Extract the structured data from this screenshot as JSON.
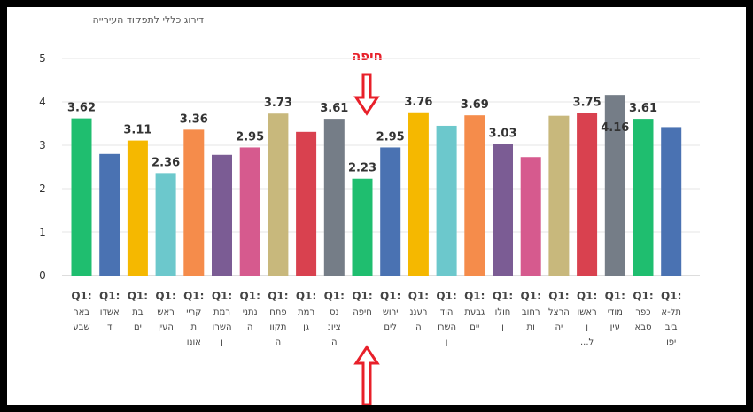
{
  "chart_data": {
    "type": "bar",
    "title": "דירוג כללי לתפקוד העירייה",
    "ylim": [
      0,
      5
    ],
    "yticks": [
      "0",
      "1",
      "2",
      "3",
      "4",
      "5"
    ],
    "grid": true,
    "categories": [
      [
        "Q1:",
        "באר",
        "שבע"
      ],
      [
        "Q1:",
        "אשדו",
        "ד"
      ],
      [
        "Q1:",
        "בת",
        "ים"
      ],
      [
        "Q1:",
        "ראש",
        "העין"
      ],
      [
        "Q1:",
        "קריי",
        "ת",
        "אונו"
      ],
      [
        "Q1:",
        "רמת",
        "השרו",
        "ן"
      ],
      [
        "Q1:",
        "נתני",
        "ה"
      ],
      [
        "Q1:",
        "פתח",
        "תקוו",
        "ה"
      ],
      [
        "Q1:",
        "רמת",
        "גן"
      ],
      [
        "Q1:",
        "נס",
        "ציונ",
        "ה"
      ],
      [
        "Q1:",
        "חיפה"
      ],
      [
        "Q1:",
        "ירוש",
        "לים"
      ],
      [
        "Q1:",
        "רעננ",
        "ה"
      ],
      [
        "Q1:",
        "הוד",
        "השרו",
        "ן"
      ],
      [
        "Q1:",
        "גבעת",
        "יים"
      ],
      [
        "Q1:",
        "חולו",
        "ן"
      ],
      [
        "Q1:",
        "רחוב",
        "ות"
      ],
      [
        "Q1:",
        "הרצל",
        "יה"
      ],
      [
        "Q1:",
        "ראשו",
        "ן",
        "ל..."
      ],
      [
        "Q1:",
        "מודי",
        "עין"
      ],
      [
        "Q1:",
        "כפר",
        "סבא"
      ],
      [
        "Q1:",
        "תל-א",
        "ביב",
        "יפו"
      ]
    ],
    "values": [
      3.62,
      2.8,
      3.11,
      2.36,
      3.36,
      2.78,
      2.95,
      3.73,
      3.31,
      3.61,
      2.23,
      2.95,
      3.76,
      3.45,
      3.69,
      3.03,
      2.73,
      3.68,
      3.75,
      4.16,
      3.61,
      3.42
    ],
    "data_labels": [
      "3.62",
      "",
      "3.11",
      "2.36",
      "3.36",
      "",
      "2.95",
      "3.73",
      "",
      "3.61",
      "2.23",
      "2.95",
      "3.76",
      "",
      "3.69",
      "3.03",
      "",
      "",
      "3.75",
      "4.16",
      "3.61",
      ""
    ],
    "colors": [
      "#1fbe6f",
      "#4a72b2",
      "#f5b800",
      "#6cc8cc",
      "#f58c4b",
      "#7b5c94",
      "#d65a8e",
      "#c8b87c",
      "#d9414f",
      "#757d87",
      "#1fbe6f",
      "#4a72b2",
      "#f5b800",
      "#6cc8cc",
      "#f58c4b",
      "#7b5c94",
      "#d65a8e",
      "#c8b87c",
      "#d9414f",
      "#757d87",
      "#1fbe6f",
      "#4a72b2"
    ]
  },
  "annotation": {
    "label": "חיפה",
    "color": "#e8202a",
    "icon": "red-outline-arrow"
  }
}
